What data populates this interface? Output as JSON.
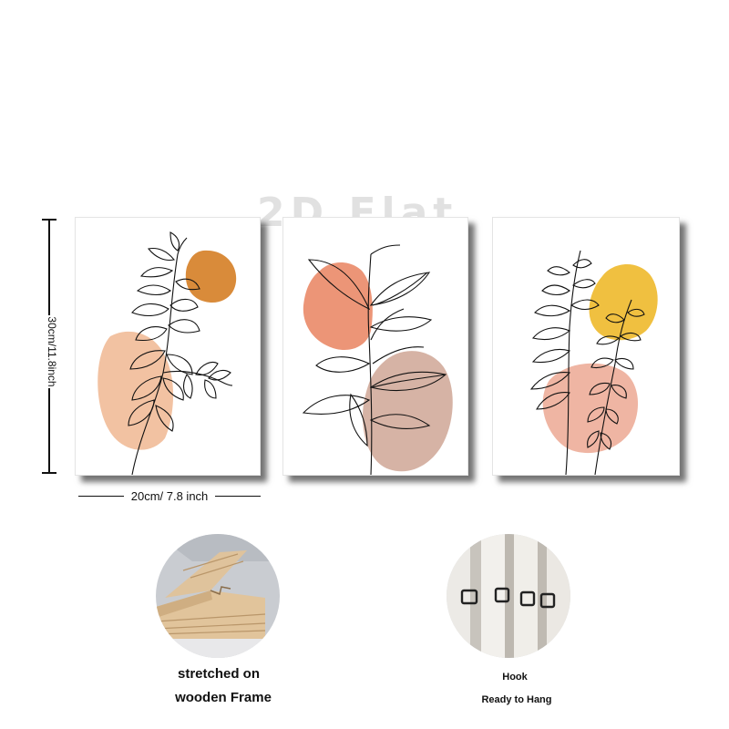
{
  "watermark": "2D Flat",
  "dimensions": {
    "height_label": "30cm/11.8inch",
    "width_label": "20cm/ 7.8 inch"
  },
  "prints": [
    {
      "name": "print-1",
      "blob_colors": [
        "#f2c2a2",
        "#d98b3a"
      ]
    },
    {
      "name": "print-2",
      "blob_colors": [
        "#ec9577",
        "#d6b3a5"
      ]
    },
    {
      "name": "print-3",
      "blob_colors": [
        "#f0c040",
        "#efb5a3"
      ]
    }
  ],
  "features": {
    "frame": {
      "caption_line1": "stretched on",
      "caption_line2": "wooden Frame"
    },
    "hook": {
      "caption_line1": "Hook",
      "caption_line2": "Ready to Hang"
    }
  },
  "colors": {
    "line_art": "#111111",
    "shadow": "#555555"
  }
}
